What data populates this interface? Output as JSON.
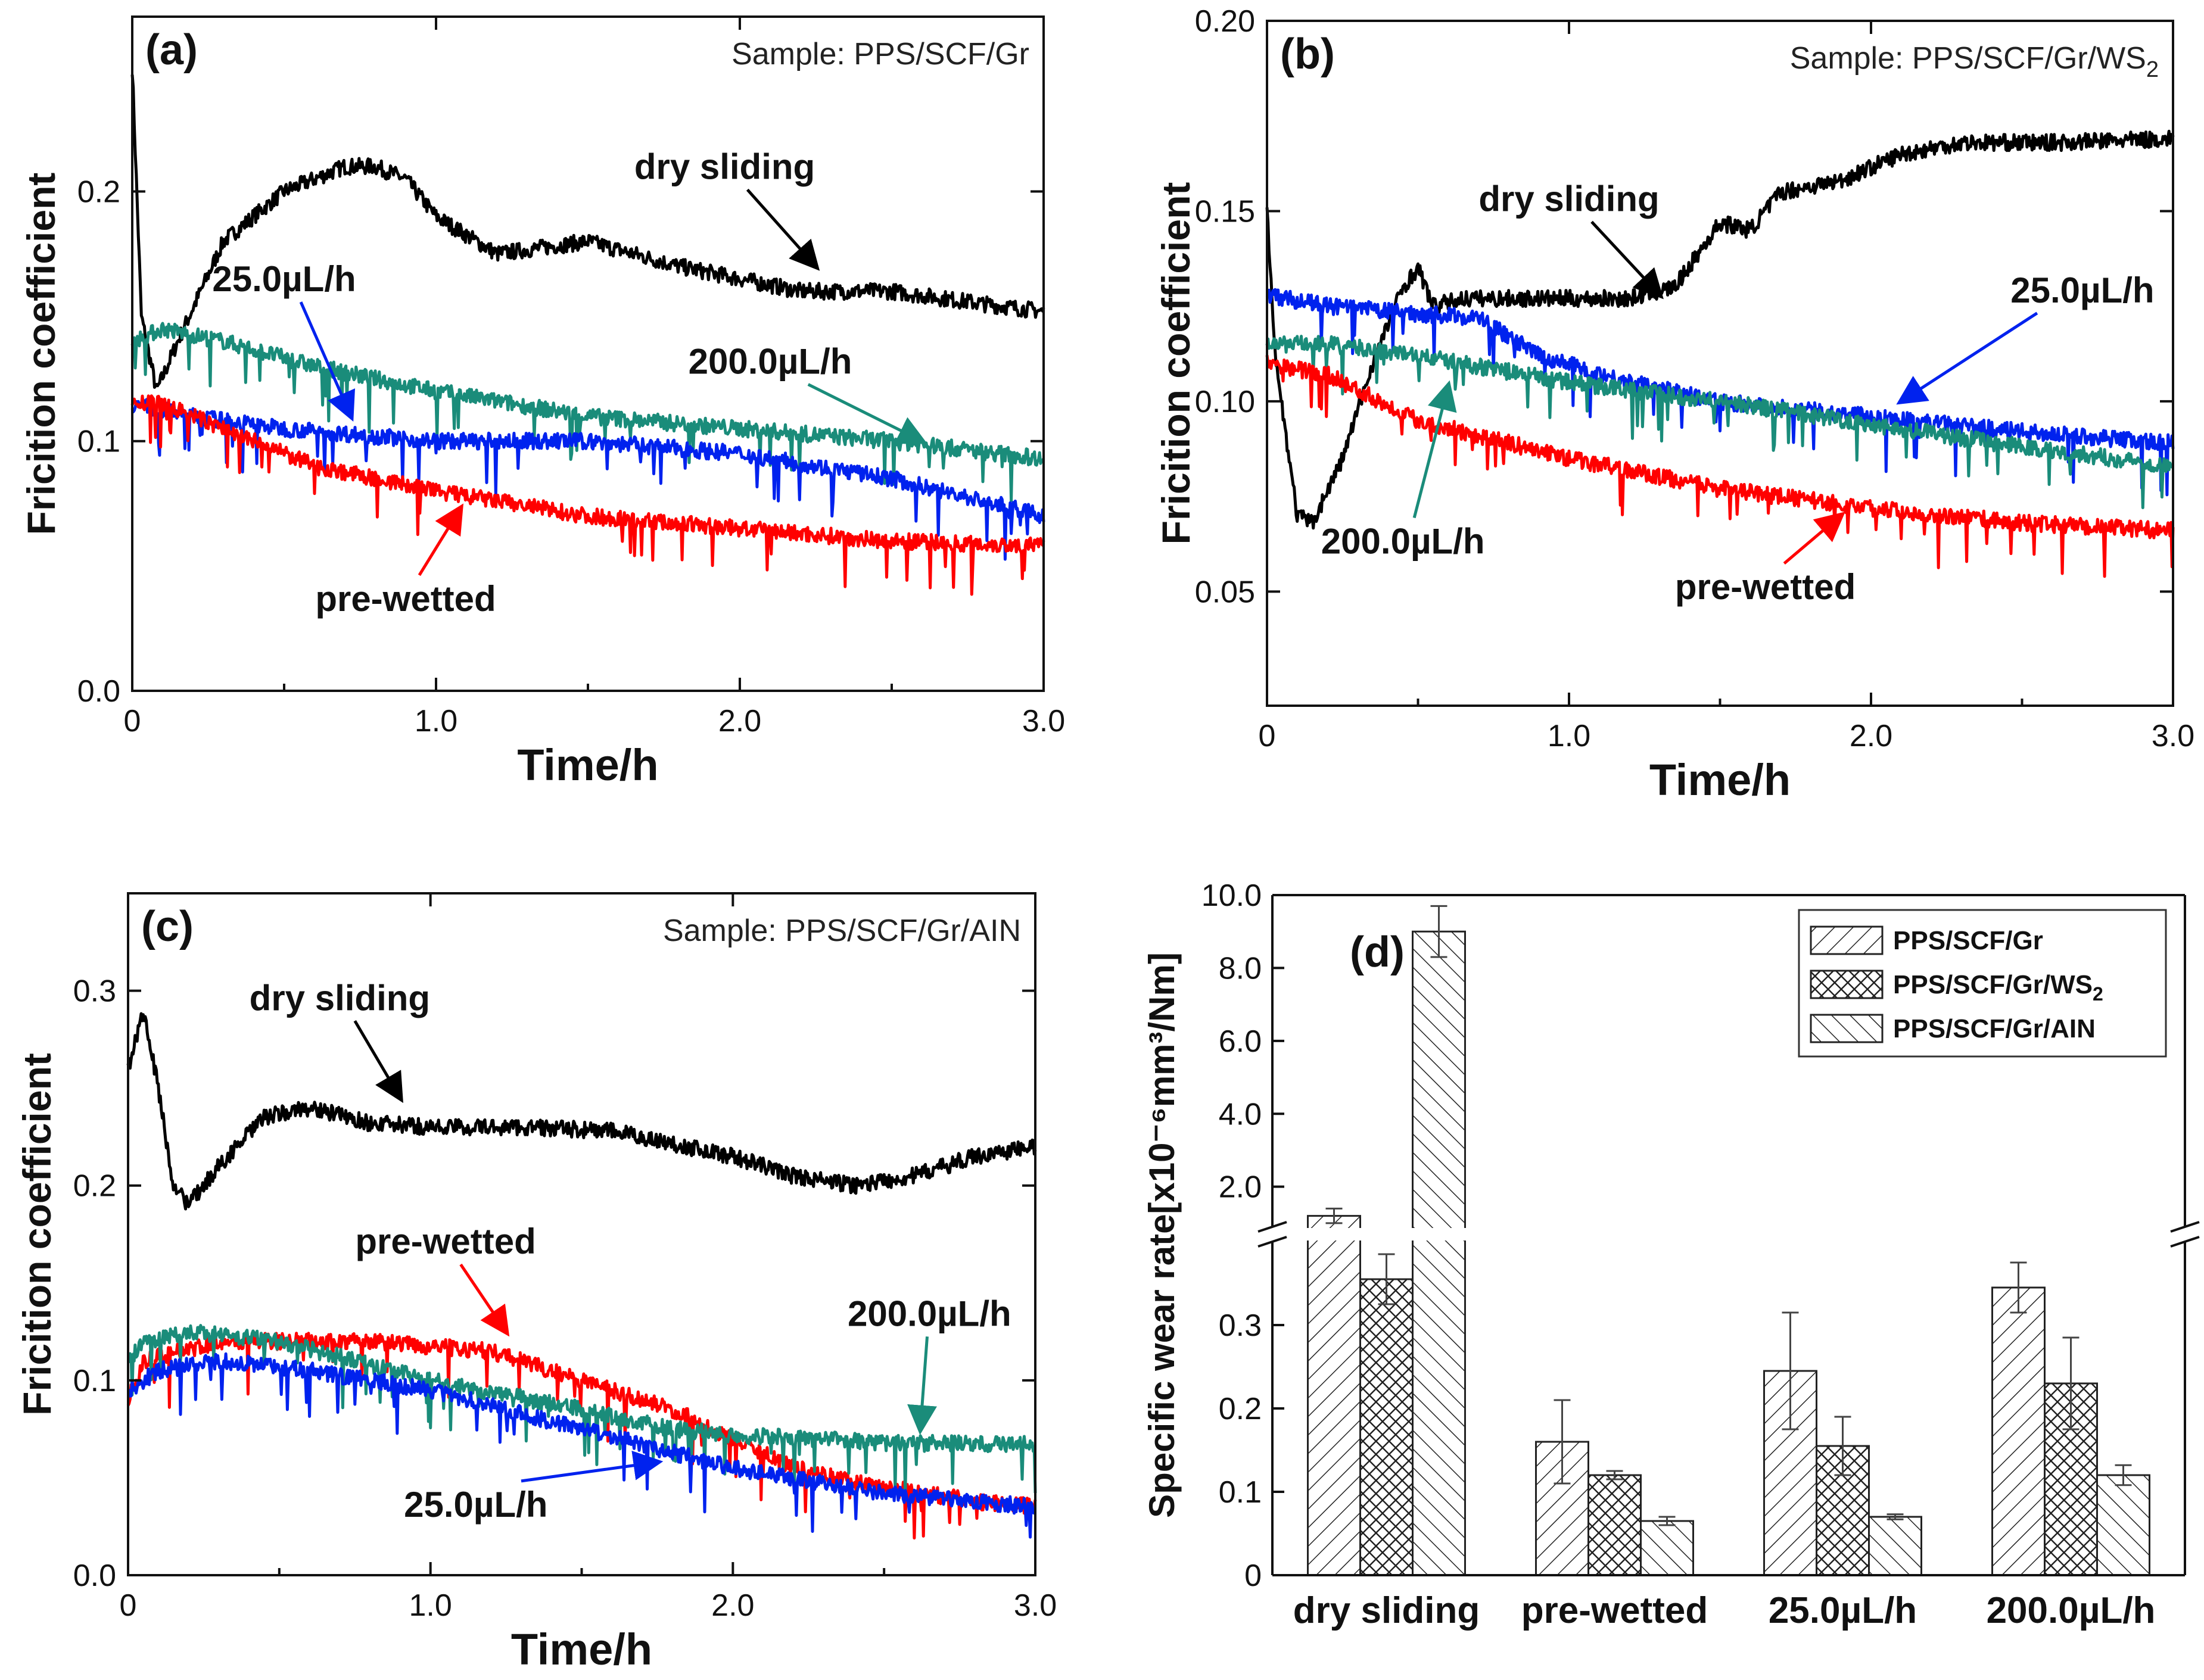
{
  "colors": {
    "dry_sliding": "#000000",
    "pre_wetted": "#ff0000",
    "rate_25": "#0022ee",
    "rate_200": "#1a8c7a"
  },
  "chart_data": [
    {
      "type": "line",
      "panel_label": "(a)",
      "sample": "Sample: PPS/SCF/Gr",
      "xlabel": "Time/h",
      "ylabel": "Fricition coefficient",
      "xlim": [
        0,
        3.0
      ],
      "ylim": [
        0,
        0.27
      ],
      "xticks": [
        "0",
        "1.0",
        "2.0",
        "3.0"
      ],
      "yticks": [
        "0.0",
        "0.1",
        "0.2"
      ],
      "series": [
        {
          "name": "dry sliding",
          "color_key": "dry_sliding",
          "x": [
            0,
            0.03,
            0.08,
            0.15,
            0.3,
            0.5,
            0.7,
            0.8,
            0.9,
            1.0,
            1.2,
            1.5,
            1.8,
            2.0,
            2.2,
            2.5,
            2.8,
            3.0
          ],
          "y": [
            0.25,
            0.15,
            0.12,
            0.14,
            0.18,
            0.2,
            0.21,
            0.21,
            0.205,
            0.19,
            0.175,
            0.18,
            0.17,
            0.165,
            0.16,
            0.16,
            0.155,
            0.152
          ]
        },
        {
          "name": "200.0µL/h",
          "color_key": "rate_200",
          "x": [
            0,
            0.1,
            0.3,
            0.6,
            1.0,
            1.5,
            2.0,
            2.5,
            3.0
          ],
          "y": [
            0.14,
            0.145,
            0.14,
            0.13,
            0.12,
            0.11,
            0.105,
            0.1,
            0.093
          ]
        },
        {
          "name": "25.0µL/h",
          "color_key": "rate_25",
          "x": [
            0,
            0.2,
            0.5,
            1.0,
            1.5,
            2.0,
            2.5,
            3.0
          ],
          "y": [
            0.115,
            0.11,
            0.105,
            0.1,
            0.1,
            0.095,
            0.085,
            0.07
          ]
        },
        {
          "name": "pre-wetted",
          "color_key": "pre_wetted",
          "x": [
            0,
            0.1,
            0.3,
            0.6,
            1.0,
            1.5,
            2.0,
            2.5,
            3.0
          ],
          "y": [
            0.115,
            0.115,
            0.105,
            0.09,
            0.08,
            0.07,
            0.065,
            0.06,
            0.058
          ]
        }
      ],
      "annotations": [
        {
          "text": "dry sliding",
          "x": 1.95,
          "y": 0.205,
          "arrow_to": [
            2.25,
            0.17
          ],
          "color_key": "dry_sliding"
        },
        {
          "text": "25.0µL/h",
          "x": 0.5,
          "y": 0.16,
          "arrow_to": [
            0.72,
            0.11
          ],
          "color_key": "rate_25"
        },
        {
          "text": "200.0µL/h",
          "x": 2.1,
          "y": 0.127,
          "arrow_to": [
            2.6,
            0.1
          ],
          "color_key": "rate_200"
        },
        {
          "text": "pre-wetted",
          "x": 0.9,
          "y": 0.032,
          "arrow_to": [
            1.08,
            0.073
          ],
          "color_key": "pre_wetted"
        }
      ]
    },
    {
      "type": "line",
      "panel_label": "(b)",
      "sample": "Sample: PPS/SCF/Gr/WS",
      "sample_subscript": "2",
      "xlabel": "Time/h",
      "ylabel": "Fricition coefficient",
      "xlim": [
        0,
        3.0
      ],
      "ylim": [
        0.02,
        0.2
      ],
      "xticks": [
        "0",
        "1.0",
        "2.0",
        "3.0"
      ],
      "yticks": [
        "0.05",
        "0.10",
        "0.15",
        "0.20"
      ],
      "series": [
        {
          "name": "dry sliding",
          "color_key": "dry_sliding",
          "x": [
            0,
            0.03,
            0.1,
            0.15,
            0.25,
            0.35,
            0.45,
            0.5,
            0.55,
            0.65,
            0.8,
            1.0,
            1.2,
            1.35,
            1.5,
            1.6,
            1.7,
            1.9,
            2.1,
            2.3,
            2.6,
            3.0
          ],
          "y": [
            0.15,
            0.11,
            0.07,
            0.068,
            0.085,
            0.11,
            0.13,
            0.135,
            0.125,
            0.127,
            0.127,
            0.127,
            0.127,
            0.13,
            0.147,
            0.145,
            0.155,
            0.158,
            0.165,
            0.168,
            0.168,
            0.169
          ]
        },
        {
          "name": "25.0µL/h",
          "color_key": "rate_25",
          "x": [
            0,
            0.2,
            0.5,
            0.7,
            0.9,
            1.2,
            1.5,
            2.0,
            2.5,
            3.0
          ],
          "y": [
            0.128,
            0.125,
            0.123,
            0.122,
            0.112,
            0.105,
            0.1,
            0.096,
            0.092,
            0.089
          ]
        },
        {
          "name": "200.0µL/h",
          "color_key": "rate_200",
          "x": [
            0,
            0.2,
            0.5,
            1.0,
            1.5,
            2.0,
            2.5,
            3.0
          ],
          "y": [
            0.115,
            0.115,
            0.112,
            0.105,
            0.1,
            0.094,
            0.088,
            0.083
          ]
        },
        {
          "name": "pre-wetted",
          "color_key": "pre_wetted",
          "x": [
            0,
            0.2,
            0.5,
            1.0,
            1.5,
            2.0,
            2.5,
            3.0
          ],
          "y": [
            0.11,
            0.107,
            0.095,
            0.085,
            0.077,
            0.072,
            0.068,
            0.066
          ]
        }
      ],
      "annotations": [
        {
          "text": "dry sliding",
          "x": 1.0,
          "y": 0.15,
          "arrow_to": [
            1.3,
            0.128
          ],
          "color_key": "dry_sliding"
        },
        {
          "text": "25.0µL/h",
          "x": 2.7,
          "y": 0.126,
          "arrow_to": [
            2.1,
            0.1
          ],
          "color_key": "rate_25"
        },
        {
          "text": "200.0µL/h",
          "x": 0.45,
          "y": 0.06,
          "arrow_to": [
            0.6,
            0.104
          ],
          "color_key": "rate_200"
        },
        {
          "text": "pre-wetted",
          "x": 1.65,
          "y": 0.048,
          "arrow_to": [
            1.9,
            0.07
          ],
          "color_key": "pre_wetted"
        }
      ]
    },
    {
      "type": "line",
      "panel_label": "(c)",
      "sample": "Sample: PPS/SCF/Gr/AIN",
      "xlabel": "Time/h",
      "ylabel": "Fricition coefficient",
      "xlim": [
        0,
        3.0
      ],
      "ylim": [
        0,
        0.35
      ],
      "xticks": [
        "0",
        "1.0",
        "2.0",
        "3.0"
      ],
      "yticks": [
        "0.0",
        "0.1",
        "0.2",
        "0.3"
      ],
      "series": [
        {
          "name": "dry sliding",
          "color_key": "dry_sliding",
          "x": [
            0,
            0.05,
            0.1,
            0.15,
            0.2,
            0.3,
            0.45,
            0.6,
            0.8,
            1.0,
            1.3,
            1.6,
            2.0,
            2.2,
            2.4,
            2.6,
            2.8,
            3.0
          ],
          "y": [
            0.26,
            0.29,
            0.25,
            0.2,
            0.19,
            0.21,
            0.235,
            0.24,
            0.232,
            0.23,
            0.23,
            0.228,
            0.215,
            0.205,
            0.2,
            0.205,
            0.215,
            0.22
          ]
        },
        {
          "name": "pre-wetted",
          "color_key": "pre_wetted",
          "x": [
            0,
            0.05,
            0.3,
            0.8,
            1.2,
            1.5,
            1.8,
            2.0,
            2.2,
            2.5,
            2.8,
            3.0
          ],
          "y": [
            0.09,
            0.11,
            0.12,
            0.12,
            0.115,
            0.1,
            0.085,
            0.07,
            0.055,
            0.045,
            0.038,
            0.035
          ]
        },
        {
          "name": "200.0µL/h",
          "color_key": "rate_200",
          "x": [
            0,
            0.05,
            0.2,
            0.5,
            1.0,
            1.5,
            1.8,
            2.0,
            2.5,
            3.0
          ],
          "y": [
            0.11,
            0.12,
            0.125,
            0.12,
            0.1,
            0.085,
            0.075,
            0.072,
            0.068,
            0.067
          ]
        },
        {
          "name": "25.0µL/h",
          "color_key": "rate_25",
          "x": [
            0,
            0.1,
            0.3,
            0.6,
            1.0,
            1.5,
            2.0,
            2.5,
            3.0
          ],
          "y": [
            0.095,
            0.105,
            0.11,
            0.105,
            0.095,
            0.075,
            0.055,
            0.042,
            0.035
          ]
        }
      ],
      "annotations": [
        {
          "text": "dry sliding",
          "x": 0.7,
          "y": 0.29,
          "arrow_to": [
            0.9,
            0.245
          ],
          "color_key": "dry_sliding"
        },
        {
          "text": "pre-wetted",
          "x": 1.05,
          "y": 0.165,
          "arrow_to": [
            1.25,
            0.125
          ],
          "color_key": "pre_wetted"
        },
        {
          "text": "200.0µL/h",
          "x": 2.65,
          "y": 0.128,
          "arrow_to": [
            2.62,
            0.075
          ],
          "color_key": "rate_200"
        },
        {
          "text": "25.0µL/h",
          "x": 1.15,
          "y": 0.03,
          "arrow_to": [
            1.75,
            0.058
          ],
          "color_key": "rate_25"
        }
      ]
    },
    {
      "type": "bar",
      "panel_label": "(d)",
      "ylabel": "Specific wear rate[x10⁻⁶mm³/Nm]",
      "categories": [
        "dry sliding",
        "pre-wetted",
        "25.0µL/h",
        "200.0µL/h"
      ],
      "series": [
        {
          "name": "PPS/SCF/Gr",
          "values": [
            1.2,
            0.16,
            0.245,
            0.345
          ],
          "errors": [
            0.2,
            0.05,
            0.07,
            0.03
          ]
        },
        {
          "name": "PPS/SCF/Gr/WS2",
          "values": [
            0.355,
            0.12,
            0.155,
            0.23
          ],
          "errors": [
            0.03,
            0.005,
            0.035,
            0.055
          ]
        },
        {
          "name": "PPS/SCF/Gr/AIN",
          "values": [
            9.0,
            0.065,
            0.07,
            0.12
          ],
          "errors": [
            0.7,
            0.005,
            0.003,
            0.012
          ]
        }
      ],
      "y_lower_ticks": [
        "0",
        "0.1",
        "0.2",
        "0.3"
      ],
      "y_upper_ticks": [
        "2.0",
        "4.0",
        "6.0",
        "8.0",
        "10.0"
      ],
      "axis_break": {
        "lower_range": [
          0,
          0.4
        ],
        "upper_range": [
          0.9,
          10.0
        ]
      },
      "legend_position": "top-right"
    }
  ]
}
